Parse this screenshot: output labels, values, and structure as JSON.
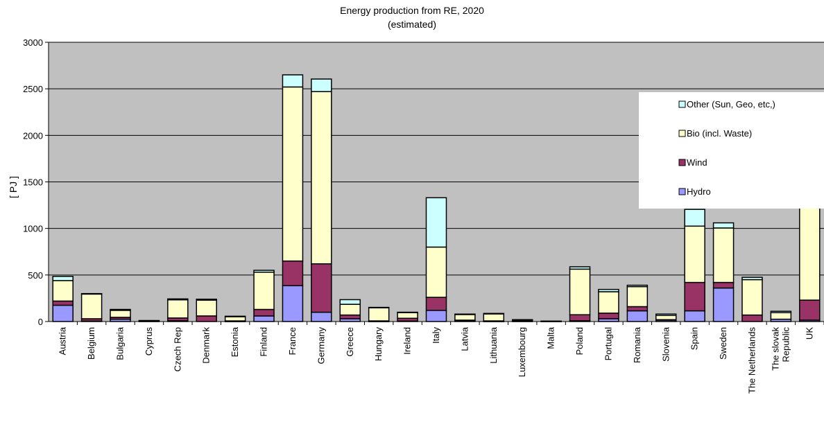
{
  "chart_data": {
    "type": "bar",
    "stacked": true,
    "title": "Energy production from RE, 2020",
    "subtitle": "(estimated)",
    "ylabel": "[ PJ ]",
    "ylim": [
      0,
      3000
    ],
    "yticks": [
      "0",
      "500",
      "1000",
      "1500",
      "2000",
      "2500",
      "3000"
    ],
    "grid": true,
    "legend_placement": "right",
    "categories": [
      "Austria",
      "Belgium",
      "Bulgaria",
      "Cyprus",
      "Czech Rep",
      "Denmark",
      "Estonia",
      "Finland",
      "France",
      "Germany",
      "Greece",
      "Hungary",
      "Ireland",
      "Italy",
      "Latvia",
      "Lithuania",
      "Luxembourg",
      "Malta",
      "Poland",
      "Portugal",
      "Romania",
      "Slovenia",
      "Spain",
      "Sweden",
      "The Netherlands",
      "The slovak Republic",
      "UK"
    ],
    "series": [
      {
        "name": "Hydro",
        "color": "#9999ff",
        "values": [
          175,
          5,
          25,
          0,
          8,
          0,
          2,
          60,
          385,
          100,
          30,
          2,
          5,
          120,
          10,
          2,
          3,
          0,
          8,
          30,
          115,
          15,
          115,
          360,
          0,
          25,
          15
        ]
      },
      {
        "name": "Wind",
        "color": "#993366",
        "values": [
          45,
          25,
          20,
          3,
          30,
          60,
          5,
          70,
          265,
          520,
          40,
          5,
          30,
          140,
          5,
          5,
          7,
          2,
          65,
          60,
          45,
          5,
          305,
          60,
          70,
          0,
          215
        ]
      },
      {
        "name": "Bio (incl. Waste)",
        "color": "#ffffcc",
        "values": [
          220,
          265,
          75,
          5,
          195,
          170,
          45,
          400,
          1870,
          1850,
          115,
          140,
          60,
          540,
          60,
          75,
          10,
          3,
          490,
          230,
          215,
          45,
          605,
          585,
          380,
          70,
          1200
        ]
      },
      {
        "name": "Other (Sun, Geo, etc,)",
        "color": "#ccffff",
        "values": [
          45,
          5,
          10,
          3,
          10,
          10,
          5,
          20,
          130,
          135,
          50,
          5,
          5,
          530,
          5,
          5,
          0,
          0,
          25,
          25,
          15,
          15,
          180,
          55,
          25,
          15,
          0
        ]
      }
    ],
    "legend_order": [
      "Other (Sun, Geo, etc,)",
      "Bio (incl. Waste)",
      "Wind",
      "Hydro"
    ],
    "plot_background": "#c0c0c0"
  }
}
